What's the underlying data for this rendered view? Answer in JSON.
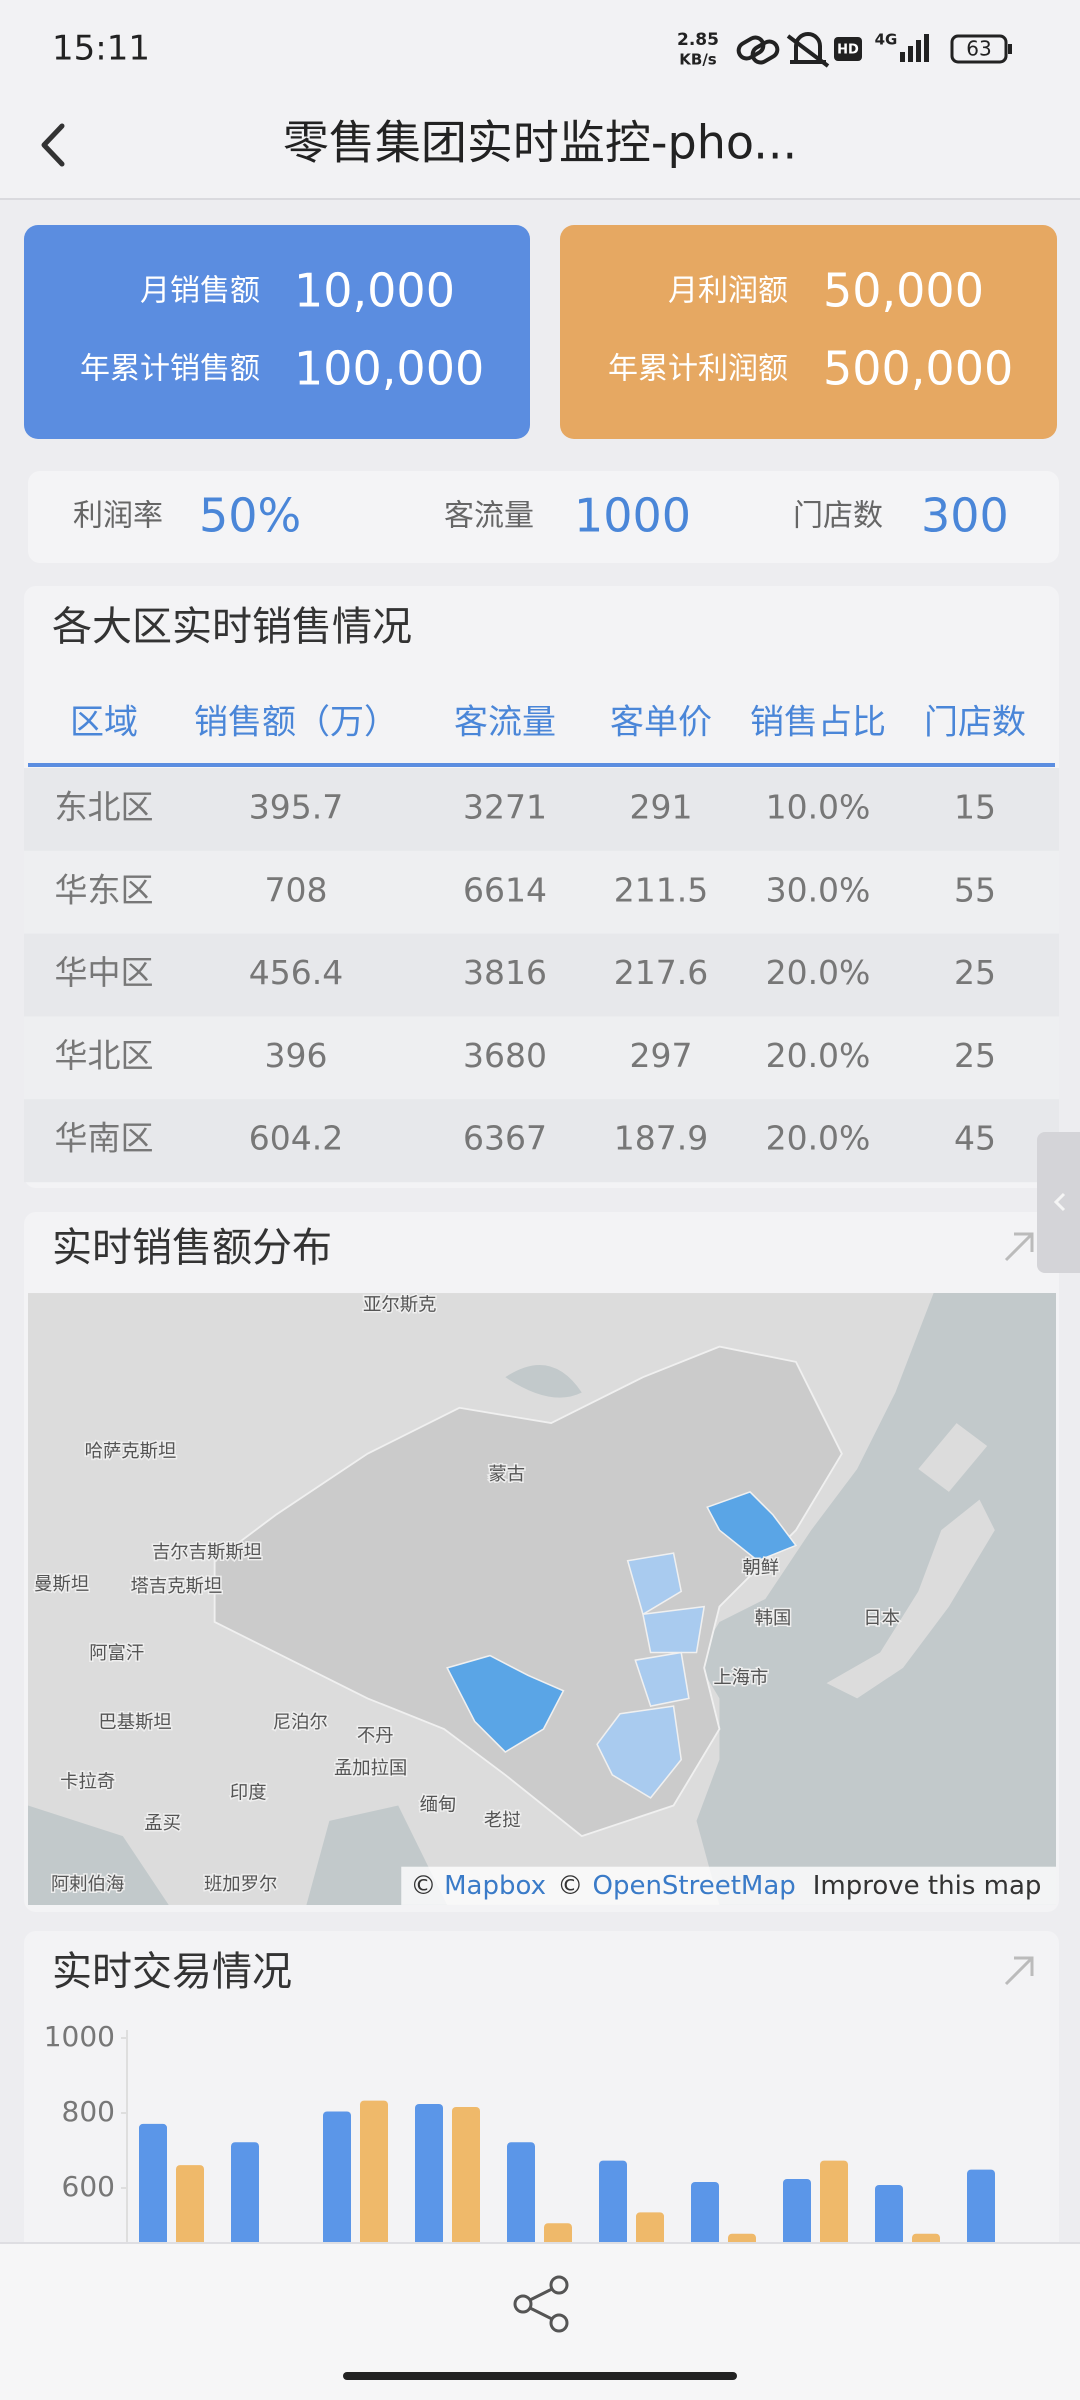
{
  "status_bar": {
    "time": "15:11",
    "speed": "2.85",
    "speed_unit": "KB/s",
    "network": "4G",
    "battery": "63"
  },
  "header": {
    "title": "零售集团实时监控-pho..."
  },
  "kpi_cards": [
    {
      "rows": [
        {
          "label": "月销售额",
          "value": "10,000"
        },
        {
          "label": "年累计销售额",
          "value": "100,000"
        }
      ]
    },
    {
      "rows": [
        {
          "label": "月利润额",
          "value": "50,000"
        },
        {
          "label": "年累计利润额",
          "value": "500,000"
        }
      ]
    }
  ],
  "stats": [
    {
      "label": "利润率",
      "value": "50%"
    },
    {
      "label": "客流量",
      "value": "1000"
    },
    {
      "label": "门店数",
      "value": "300"
    }
  ],
  "region_table": {
    "title": "各大区实时销售情况",
    "columns": [
      "区域",
      "销售额（万）",
      "客流量",
      "客单价",
      "销售占比",
      "门店数"
    ],
    "rows": [
      [
        "东北区",
        "395.7",
        "3271",
        "291",
        "10.0%",
        "15"
      ],
      [
        "华东区",
        "708",
        "6614",
        "211.5",
        "30.0%",
        "55"
      ],
      [
        "华中区",
        "456.4",
        "3816",
        "217.6",
        "20.0%",
        "25"
      ],
      [
        "华北区",
        "396",
        "3680",
        "297",
        "20.0%",
        "25"
      ],
      [
        "华南区",
        "604.2",
        "6367",
        "187.9",
        "20.0%",
        "45"
      ]
    ]
  },
  "map": {
    "title": "实时销售额分布",
    "labels": [
      "亚尔斯克",
      "哈萨克斯坦",
      "蒙古",
      "吉尔吉斯斯坦",
      "曼斯坦",
      "塔吉克斯坦",
      "阿富汗",
      "巴基斯坦",
      "尼泊尔",
      "不丹",
      "孟加拉国",
      "印度",
      "缅甸",
      "老挝",
      "卡拉奇",
      "孟买",
      "阿剌伯海",
      "班加罗尔",
      "朝鲜",
      "韩国",
      "日本",
      "上海市"
    ],
    "attribution": [
      "©",
      "Mapbox",
      "©",
      "OpenStreetMap",
      "Improve this map"
    ]
  },
  "chart_data": {
    "type": "bar",
    "title": "实时交易情况",
    "ylim": [
      0,
      1000
    ],
    "yticks": [
      600,
      800,
      1000
    ],
    "series": [
      {
        "color": "#5b96e8",
        "values": [
          771,
          722,
          804,
          824,
          722,
          673,
          616,
          624,
          608,
          649
        ]
      },
      {
        "color": "#efb96a",
        "values": [
          661,
          null,
          833,
          816,
          506,
          535,
          478,
          673,
          478,
          null
        ]
      }
    ]
  }
}
